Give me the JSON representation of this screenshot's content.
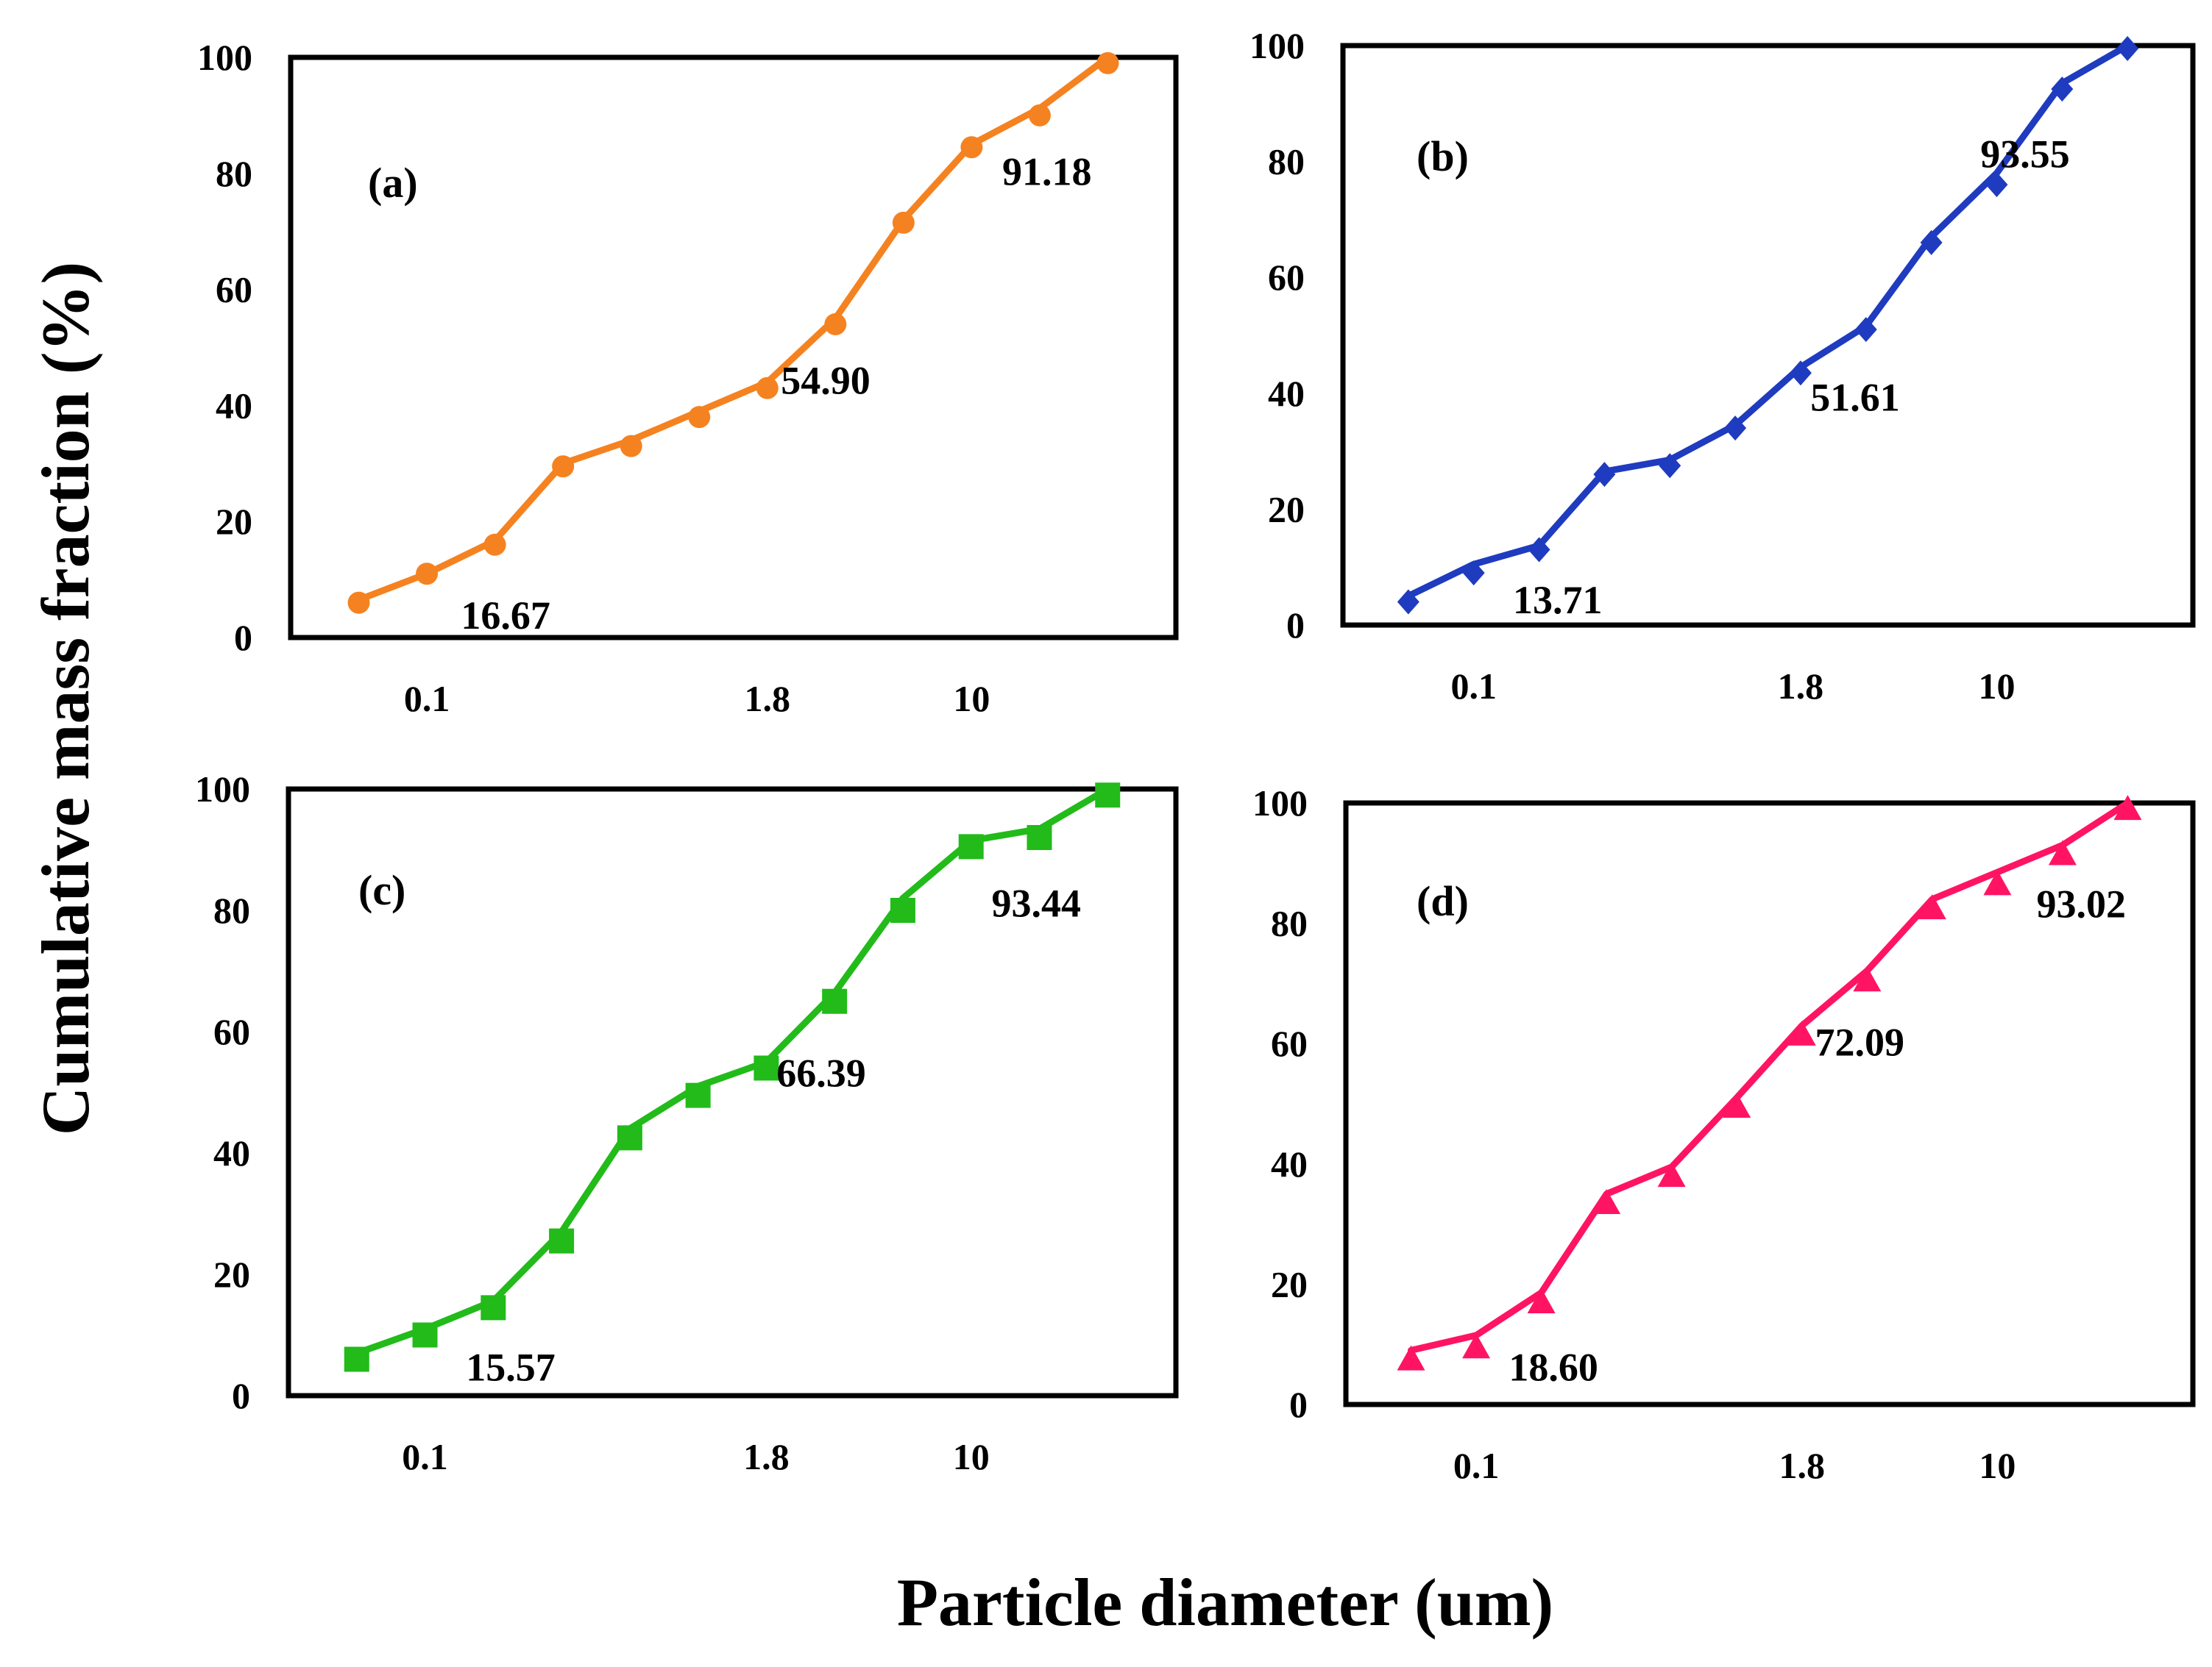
{
  "figure": {
    "ylabel": "Cumulative mass fraction (%)",
    "xlabel": "Particle diameter (um)"
  },
  "chart_data": [
    {
      "type": "line",
      "panel": "(a)",
      "color": "#F58220",
      "marker": "circle",
      "xlim": [
        0,
        13
      ],
      "ylim": [
        0,
        100
      ],
      "yticks": [
        0,
        20,
        40,
        60,
        80,
        100
      ],
      "xticks": [
        {
          "pos": 2,
          "label": "0.1"
        },
        {
          "pos": 7,
          "label": "1.8"
        },
        {
          "pos": 10,
          "label": "10"
        }
      ],
      "line": [
        6.5,
        11,
        16.7,
        30,
        34,
        39,
        44,
        55,
        72,
        85,
        91.2,
        100
      ],
      "markers": [
        6,
        11,
        16,
        29.5,
        33,
        38,
        43,
        54,
        71.5,
        84.5,
        90,
        99
      ],
      "annotations": [
        {
          "text": "16.67",
          "pos": 2.5,
          "val": 1.5
        },
        {
          "text": "54.90",
          "pos": 7.2,
          "val": 42
        },
        {
          "text": "91.18",
          "pos": 10.45,
          "val": 78
        }
      ]
    },
    {
      "type": "line",
      "panel": "(b)",
      "color": "#1F3BBF",
      "marker": "diamond",
      "xlim": [
        0,
        13
      ],
      "ylim": [
        0,
        100
      ],
      "yticks": [
        0,
        20,
        40,
        60,
        80,
        100
      ],
      "xticks": [
        {
          "pos": 2,
          "label": "0.1"
        },
        {
          "pos": 7,
          "label": "1.8"
        },
        {
          "pos": 10,
          "label": "10"
        }
      ],
      "line": [
        5,
        10.5,
        13.7,
        26.5,
        28.5,
        34.5,
        44.5,
        51.6,
        67,
        78,
        93.5,
        100
      ],
      "markers": [
        4,
        9,
        13,
        26,
        27.5,
        34,
        43.5,
        51,
        66,
        76,
        92.5,
        99.5
      ],
      "annotations": [
        {
          "text": "13.71",
          "pos": 2.6,
          "val": 2
        },
        {
          "text": "51.61",
          "pos": 7.15,
          "val": 37
        },
        {
          "text": "93.55",
          "pos": 9.75,
          "val": 79
        }
      ]
    },
    {
      "type": "line",
      "panel": "(c)",
      "color": "#22BB1A",
      "marker": "square",
      "xlim": [
        0,
        13
      ],
      "ylim": [
        0,
        100
      ],
      "yticks": [
        0,
        20,
        40,
        60,
        80,
        100
      ],
      "xticks": [
        {
          "pos": 2,
          "label": "0.1"
        },
        {
          "pos": 7,
          "label": "1.8"
        },
        {
          "pos": 10,
          "label": "10"
        }
      ],
      "line": [
        7,
        11,
        15.6,
        27,
        44,
        51,
        55,
        66.4,
        82,
        91.5,
        93.4,
        100
      ],
      "markers": [
        6,
        10,
        14.5,
        25.5,
        42.5,
        49.5,
        54,
        65,
        80,
        90.5,
        92,
        99
      ],
      "annotations": [
        {
          "text": "15.57",
          "pos": 2.6,
          "val": 2.5
        },
        {
          "text": "66.39",
          "pos": 7.15,
          "val": 51
        },
        {
          "text": "93.44",
          "pos": 10.3,
          "val": 79
        }
      ]
    },
    {
      "type": "line",
      "panel": "(d)",
      "color": "#FF1464",
      "marker": "triangle",
      "xlim": [
        0,
        13
      ],
      "ylim": [
        0,
        100
      ],
      "yticks": [
        0,
        20,
        40,
        60,
        80,
        100
      ],
      "xticks": [
        {
          "pos": 2,
          "label": "0.1"
        },
        {
          "pos": 7,
          "label": "1.8"
        },
        {
          "pos": 10,
          "label": "10"
        }
      ],
      "line": [
        9,
        11.5,
        18.6,
        35,
        39.5,
        51,
        63,
        72.1,
        84,
        88.5,
        93,
        100
      ],
      "markers": [
        7.5,
        9.5,
        17,
        33.5,
        38,
        49.5,
        61.5,
        70.5,
        82.5,
        86.5,
        91.5,
        99
      ],
      "annotations": [
        {
          "text": "18.60",
          "pos": 2.5,
          "val": 4
        },
        {
          "text": "72.09",
          "pos": 7.2,
          "val": 58
        },
        {
          "text": "93.02",
          "pos": 10.6,
          "val": 81
        }
      ]
    }
  ]
}
